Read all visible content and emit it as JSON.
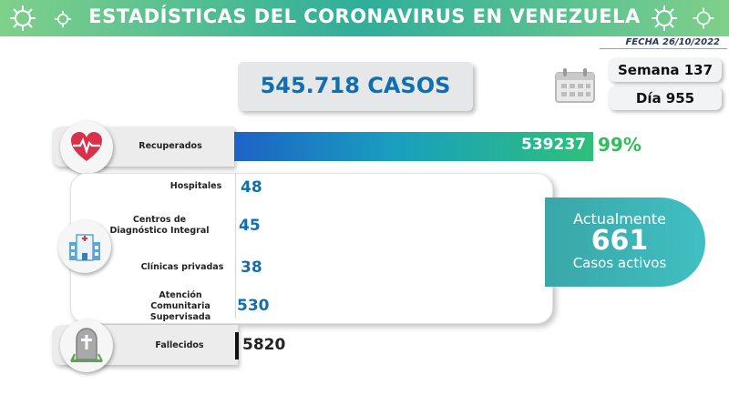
{
  "header": {
    "title": "ESTADÍSTICAS DEL CORONAVIRUS EN VENEZUELA",
    "date": "FECHA 26/10/2022"
  },
  "summary": {
    "total_cases": "545.718 CASOS",
    "week": "Semana 137",
    "day": "Día 955"
  },
  "recovered": {
    "label": "Recuperados",
    "value": "539237",
    "percent": "99%",
    "fraction": 0.99
  },
  "locations": [
    {
      "label": "Hospitales",
      "value": "48"
    },
    {
      "label": "Centros de Diagnóstico Integral",
      "value": "45"
    },
    {
      "label": "Clínicas privadas",
      "value": "38"
    },
    {
      "label": "Atención Comunitaria Supervisada",
      "value": "530"
    }
  ],
  "active": {
    "line1": "Actualmente",
    "count": "661",
    "line2": "Casos activos"
  },
  "deaths": {
    "label": "Fallecidos",
    "value": "5820"
  },
  "icons": {
    "virus": "virus-icon",
    "calendar": "calendar-icon",
    "heart": "heartbeat-icon",
    "hospital": "hospital-icon",
    "tombstone": "tombstone-icon"
  },
  "colors": {
    "brand_blue": "#0f6fb0",
    "success_green": "#2fbf5a",
    "active_teal": "#40bfc2",
    "banner_green": "#2fae9a"
  }
}
